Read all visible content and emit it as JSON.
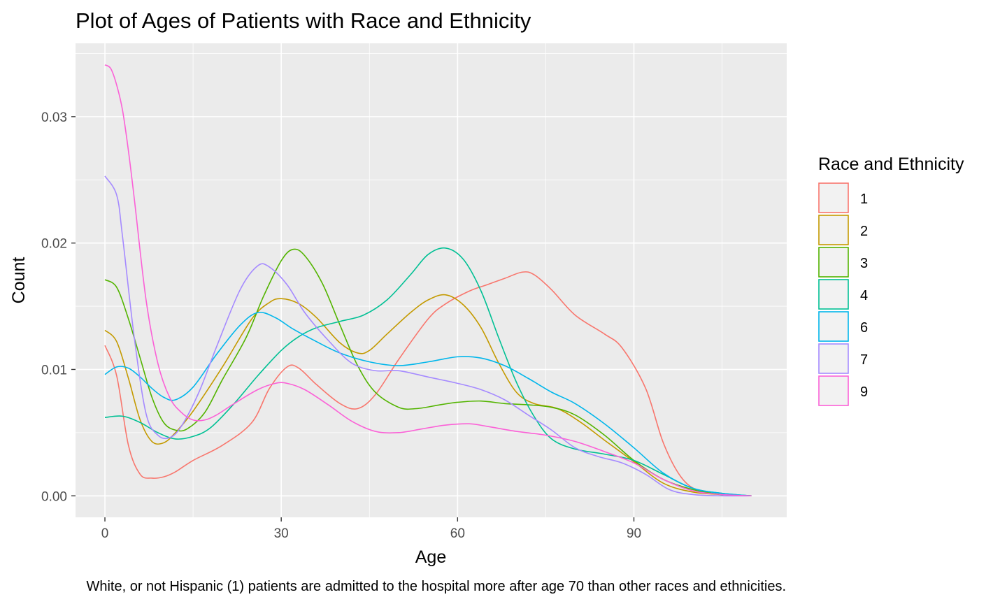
{
  "chart_data": {
    "type": "area",
    "title": "Plot of Ages of Patients with Race and Ethnicity",
    "xlabel": "Age",
    "ylabel": "Count",
    "xlim": [
      -5,
      116
    ],
    "ylim": [
      -0.0017,
      0.0358
    ],
    "x_ticks": [
      0,
      30,
      60,
      90
    ],
    "x_tick_labels": [
      "0",
      "30",
      "60",
      "90"
    ],
    "y_ticks": [
      0,
      0.01,
      0.02,
      0.03
    ],
    "y_tick_labels": [
      "0.00",
      "0.01",
      "0.02",
      "0.03"
    ],
    "legend": {
      "title": "Race and Ethnicity",
      "position": "right"
    },
    "caption": "White, or not Hispanic (1) patients are admitted to the hospital more after age 70 than other races and ethnicities.",
    "grid": true,
    "background": "#ebebeb",
    "series": [
      {
        "name": "1",
        "color": "#F8766D",
        "points": [
          [
            0,
            0.0119
          ],
          [
            2,
            0.0095
          ],
          [
            4,
            0.004
          ],
          [
            6,
            0.0017
          ],
          [
            8,
            0.0014
          ],
          [
            10,
            0.0015
          ],
          [
            12,
            0.0019
          ],
          [
            15,
            0.0028
          ],
          [
            20,
            0.004
          ],
          [
            25,
            0.0058
          ],
          [
            28,
            0.0085
          ],
          [
            31,
            0.0102
          ],
          [
            33,
            0.0101
          ],
          [
            36,
            0.0088
          ],
          [
            40,
            0.0073
          ],
          [
            43,
            0.0069
          ],
          [
            46,
            0.008
          ],
          [
            50,
            0.0108
          ],
          [
            55,
            0.014
          ],
          [
            58,
            0.0152
          ],
          [
            62,
            0.0162
          ],
          [
            65,
            0.0167
          ],
          [
            68,
            0.0172
          ],
          [
            71,
            0.0177
          ],
          [
            73,
            0.0175
          ],
          [
            76,
            0.0163
          ],
          [
            80,
            0.0143
          ],
          [
            85,
            0.0128
          ],
          [
            88,
            0.0117
          ],
          [
            92,
            0.0085
          ],
          [
            95,
            0.0042
          ],
          [
            98,
            0.0015
          ],
          [
            101,
            0.0004
          ],
          [
            105,
            0.0001
          ],
          [
            110,
            0
          ]
        ]
      },
      {
        "name": "2",
        "color": "#C49A00",
        "points": [
          [
            0,
            0.0131
          ],
          [
            2,
            0.0122
          ],
          [
            4,
            0.0093
          ],
          [
            6,
            0.006
          ],
          [
            8,
            0.0043
          ],
          [
            10,
            0.0042
          ],
          [
            12,
            0.005
          ],
          [
            15,
            0.0067
          ],
          [
            20,
            0.0102
          ],
          [
            25,
            0.014
          ],
          [
            28,
            0.0153
          ],
          [
            30,
            0.0156
          ],
          [
            33,
            0.0152
          ],
          [
            36,
            0.0141
          ],
          [
            40,
            0.0121
          ],
          [
            43,
            0.0113
          ],
          [
            45,
            0.0115
          ],
          [
            48,
            0.0128
          ],
          [
            52,
            0.0145
          ],
          [
            55,
            0.0155
          ],
          [
            58,
            0.0159
          ],
          [
            61,
            0.0151
          ],
          [
            64,
            0.0133
          ],
          [
            67,
            0.0105
          ],
          [
            70,
            0.0082
          ],
          [
            73,
            0.0073
          ],
          [
            77,
            0.0069
          ],
          [
            81,
            0.0058
          ],
          [
            85,
            0.0044
          ],
          [
            90,
            0.0027
          ],
          [
            95,
            0.001
          ],
          [
            100,
            0.0003
          ],
          [
            105,
            0.0001
          ],
          [
            110,
            0
          ]
        ]
      },
      {
        "name": "3",
        "color": "#53B400",
        "points": [
          [
            0,
            0.0171
          ],
          [
            2,
            0.0165
          ],
          [
            4,
            0.014
          ],
          [
            6,
            0.0109
          ],
          [
            8,
            0.0078
          ],
          [
            10,
            0.0058
          ],
          [
            12,
            0.0052
          ],
          [
            14,
            0.0053
          ],
          [
            17,
            0.0066
          ],
          [
            20,
            0.0092
          ],
          [
            24,
            0.0125
          ],
          [
            27,
            0.0158
          ],
          [
            30,
            0.0186
          ],
          [
            32,
            0.0195
          ],
          [
            34,
            0.019
          ],
          [
            37,
            0.0168
          ],
          [
            40,
            0.0135
          ],
          [
            43,
            0.0103
          ],
          [
            46,
            0.0082
          ],
          [
            50,
            0.007
          ],
          [
            53,
            0.0069
          ],
          [
            57,
            0.0072
          ],
          [
            60,
            0.0074
          ],
          [
            64,
            0.0075
          ],
          [
            68,
            0.0073
          ],
          [
            72,
            0.0072
          ],
          [
            76,
            0.007
          ],
          [
            80,
            0.0064
          ],
          [
            85,
            0.0048
          ],
          [
            90,
            0.0028
          ],
          [
            95,
            0.0013
          ],
          [
            100,
            0.0005
          ],
          [
            105,
            0.0001
          ],
          [
            110,
            0
          ]
        ]
      },
      {
        "name": "4",
        "color": "#00C094",
        "points": [
          [
            0,
            0.0062
          ],
          [
            3,
            0.0063
          ],
          [
            6,
            0.0058
          ],
          [
            9,
            0.005
          ],
          [
            12,
            0.0045
          ],
          [
            15,
            0.0047
          ],
          [
            18,
            0.0054
          ],
          [
            22,
            0.0073
          ],
          [
            26,
            0.0095
          ],
          [
            30,
            0.0115
          ],
          [
            33,
            0.0126
          ],
          [
            36,
            0.0133
          ],
          [
            40,
            0.0138
          ],
          [
            44,
            0.0143
          ],
          [
            48,
            0.0155
          ],
          [
            52,
            0.0175
          ],
          [
            55,
            0.0191
          ],
          [
            58,
            0.0196
          ],
          [
            61,
            0.0187
          ],
          [
            64,
            0.0162
          ],
          [
            67,
            0.0125
          ],
          [
            70,
            0.009
          ],
          [
            73,
            0.0063
          ],
          [
            76,
            0.0045
          ],
          [
            80,
            0.0037
          ],
          [
            85,
            0.0033
          ],
          [
            90,
            0.0028
          ],
          [
            95,
            0.0017
          ],
          [
            100,
            0.0006
          ],
          [
            105,
            0.0002
          ],
          [
            110,
            0
          ]
        ]
      },
      {
        "name": "6",
        "color": "#00B6EB",
        "points": [
          [
            0,
            0.0096
          ],
          [
            2,
            0.0102
          ],
          [
            4,
            0.0101
          ],
          [
            6,
            0.0094
          ],
          [
            8,
            0.0085
          ],
          [
            10,
            0.0078
          ],
          [
            12,
            0.0076
          ],
          [
            15,
            0.0086
          ],
          [
            19,
            0.0112
          ],
          [
            23,
            0.0135
          ],
          [
            26,
            0.0145
          ],
          [
            29,
            0.0141
          ],
          [
            32,
            0.0132
          ],
          [
            36,
            0.0122
          ],
          [
            40,
            0.0113
          ],
          [
            45,
            0.0106
          ],
          [
            50,
            0.0103
          ],
          [
            55,
            0.0106
          ],
          [
            60,
            0.011
          ],
          [
            64,
            0.0109
          ],
          [
            68,
            0.0103
          ],
          [
            72,
            0.0093
          ],
          [
            76,
            0.0082
          ],
          [
            80,
            0.0073
          ],
          [
            85,
            0.0057
          ],
          [
            90,
            0.0038
          ],
          [
            95,
            0.0018
          ],
          [
            100,
            0.0006
          ],
          [
            105,
            0.0002
          ],
          [
            110,
            0
          ]
        ]
      },
      {
        "name": "7",
        "color": "#A58AFF",
        "points": [
          [
            0,
            0.0253
          ],
          [
            2,
            0.0238
          ],
          [
            3,
            0.0205
          ],
          [
            5,
            0.0125
          ],
          [
            7,
            0.0065
          ],
          [
            9,
            0.0048
          ],
          [
            11,
            0.0046
          ],
          [
            13,
            0.0055
          ],
          [
            16,
            0.0082
          ],
          [
            19,
            0.0118
          ],
          [
            23,
            0.0163
          ],
          [
            26,
            0.0182
          ],
          [
            28,
            0.0181
          ],
          [
            31,
            0.0167
          ],
          [
            34,
            0.0145
          ],
          [
            38,
            0.0123
          ],
          [
            42,
            0.0105
          ],
          [
            46,
            0.0099
          ],
          [
            50,
            0.0099
          ],
          [
            55,
            0.0094
          ],
          [
            60,
            0.0089
          ],
          [
            64,
            0.0084
          ],
          [
            68,
            0.0076
          ],
          [
            72,
            0.0064
          ],
          [
            76,
            0.0052
          ],
          [
            80,
            0.0038
          ],
          [
            84,
            0.0031
          ],
          [
            88,
            0.0026
          ],
          [
            92,
            0.0017
          ],
          [
            96,
            0.0005
          ],
          [
            100,
            0.0001
          ],
          [
            105,
            0
          ],
          [
            110,
            0
          ]
        ]
      },
      {
        "name": "9",
        "color": "#FB61D7",
        "points": [
          [
            0,
            0.0341
          ],
          [
            1,
            0.0338
          ],
          [
            2,
            0.0325
          ],
          [
            3,
            0.0305
          ],
          [
            4,
            0.0273
          ],
          [
            5,
            0.0235
          ],
          [
            7,
            0.0155
          ],
          [
            9,
            0.0105
          ],
          [
            11,
            0.0078
          ],
          [
            13,
            0.0066
          ],
          [
            15,
            0.006
          ],
          [
            17,
            0.006
          ],
          [
            19,
            0.0064
          ],
          [
            22,
            0.0073
          ],
          [
            26,
            0.0084
          ],
          [
            29,
            0.0089
          ],
          [
            31,
            0.0089
          ],
          [
            34,
            0.0084
          ],
          [
            38,
            0.0072
          ],
          [
            42,
            0.0059
          ],
          [
            46,
            0.0051
          ],
          [
            50,
            0.005
          ],
          [
            54,
            0.0053
          ],
          [
            58,
            0.0056
          ],
          [
            62,
            0.0057
          ],
          [
            65,
            0.0055
          ],
          [
            70,
            0.0051
          ],
          [
            75,
            0.0048
          ],
          [
            80,
            0.0043
          ],
          [
            85,
            0.0035
          ],
          [
            90,
            0.0026
          ],
          [
            95,
            0.0013
          ],
          [
            100,
            0.0004
          ],
          [
            105,
            0.0001
          ],
          [
            110,
            0
          ]
        ]
      }
    ]
  }
}
